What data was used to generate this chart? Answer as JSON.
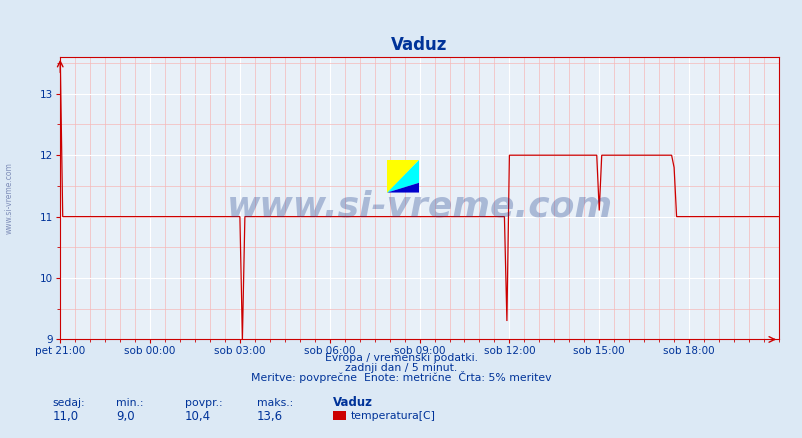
{
  "title": "Vaduz",
  "bg_color": "#dce9f5",
  "plot_bg_color": "#e8f0f8",
  "line_color": "#cc0000",
  "grid_color_major": "#ffffff",
  "grid_color_minor": "#f5b8b8",
  "axis_color": "#cc0000",
  "text_color": "#003399",
  "xlim": [
    0,
    288
  ],
  "ylim": [
    9.0,
    13.6
  ],
  "yticks": [
    9,
    10,
    11,
    12,
    13
  ],
  "xtick_labels": [
    "pet 21:00",
    "sob 00:00",
    "sob 03:00",
    "sob 06:00",
    "sob 09:00",
    "sob 12:00",
    "sob 15:00",
    "sob 18:00"
  ],
  "xtick_positions": [
    0,
    36,
    72,
    108,
    144,
    180,
    216,
    252
  ],
  "footer_line1": "Evropa / vremenski podatki.",
  "footer_line2": "zadnji dan / 5 minut.",
  "footer_line3": "Meritve: povprečne  Enote: metrične  Črta: 5% meritev",
  "label_sedaj": "sedaj:",
  "label_min": "min.:",
  "label_povpr": "povpr.:",
  "label_maks": "maks.:",
  "val_sedaj": "11,0",
  "val_min": "9,0",
  "val_povpr": "10,4",
  "val_maks": "13,6",
  "legend_station": "Vaduz",
  "legend_label": "temperatura[C]",
  "legend_color": "#cc0000",
  "watermark_text": "www.si-vreme.com",
  "watermark_color": "#1a3a8a",
  "watermark_alpha": 0.3,
  "sidebar_text": "www.si-vreme.com",
  "sidebar_color": "#334488",
  "sidebar_alpha": 0.55
}
